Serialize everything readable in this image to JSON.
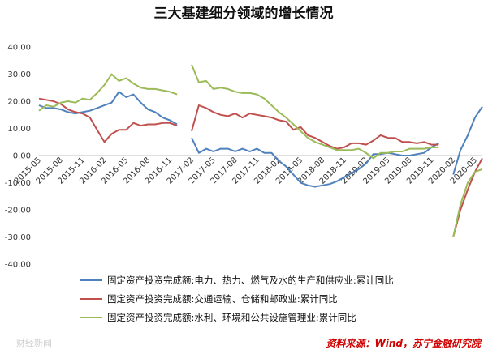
{
  "chart_data": {
    "type": "line",
    "title": "三大基建细分领域的增长情况",
    "ylim": [
      -40,
      40
    ],
    "yticks": [
      40,
      30,
      20,
      10,
      0,
      -10,
      -20,
      -30,
      -40
    ],
    "ytick_labels": [
      "40.00",
      "30.00",
      "20.00",
      "10.00",
      "0.00",
      "-10.00",
      "-20.00",
      "-30.00",
      "-40.00"
    ],
    "xtick_labels": [
      "2015-05",
      "2015-08",
      "2015-11",
      "2016-02",
      "2016-05",
      "2016-08",
      "2016-11",
      "2017-02",
      "2017-05",
      "2017-08",
      "2017-11",
      "2018-02",
      "2018-05",
      "2018-08",
      "2018-11",
      "2019-02",
      "2019-05",
      "2019-08",
      "2019-11",
      "2020-02",
      "2020-05"
    ],
    "x": [
      "2015-05",
      "2015-06",
      "2015-07",
      "2015-08",
      "2015-09",
      "2015-10",
      "2015-11",
      "2015-12",
      "2016-01",
      "2016-02",
      "2016-03",
      "2016-04",
      "2016-05",
      "2016-06",
      "2016-07",
      "2016-08",
      "2016-09",
      "2016-10",
      "2016-11",
      "2016-12",
      "2017-01",
      "2017-02",
      "2017-03",
      "2017-04",
      "2017-05",
      "2017-06",
      "2017-07",
      "2017-08",
      "2017-09",
      "2017-10",
      "2017-11",
      "2017-12",
      "2018-01",
      "2018-02",
      "2018-03",
      "2018-04",
      "2018-05",
      "2018-06",
      "2018-07",
      "2018-08",
      "2018-09",
      "2018-10",
      "2018-11",
      "2018-12",
      "2019-01",
      "2019-02",
      "2019-03",
      "2019-04",
      "2019-05",
      "2019-06",
      "2019-07",
      "2019-08",
      "2019-09",
      "2019-10",
      "2019-11",
      "2019-12",
      "2020-01",
      "2020-02",
      "2020-03",
      "2020-04",
      "2020-05",
      "2020-06"
    ],
    "series": [
      {
        "name": "固定资产投资完成额:电力、热力、燃气及水的生产和供应业:累计同比",
        "color": "#4f81bd",
        "values": [
          18.5,
          17.5,
          17.5,
          17.0,
          16.0,
          15.5,
          16.0,
          16.5,
          17.5,
          18.5,
          19.5,
          23.5,
          21.5,
          22.5,
          19.5,
          17.0,
          16.0,
          14.0,
          13.0,
          11.5,
          null,
          6.5,
          1.0,
          2.5,
          1.5,
          2.5,
          2.5,
          1.5,
          2.5,
          1.5,
          2.5,
          1.0,
          1.0,
          -2.0,
          -4.0,
          -7.0,
          -10.0,
          -11.0,
          -11.5,
          -11.0,
          -10.5,
          -9.5,
          -8.0,
          -6.5,
          -5.0,
          -3.0,
          0.5,
          0.5,
          1.0,
          0.5,
          0.0,
          0.0,
          0.5,
          1.0,
          3.0,
          4.5,
          null,
          -7.0,
          2.0,
          7.5,
          14.0,
          18.0
        ]
      },
      {
        "name": "固定资产投资完成额:交通运输、仓储和邮政业:累计同比",
        "color": "#c0504d",
        "values": [
          21.0,
          20.5,
          20.0,
          19.0,
          17.0,
          16.0,
          15.5,
          14.0,
          9.5,
          5.0,
          8.0,
          9.5,
          9.5,
          12.0,
          11.0,
          11.5,
          11.5,
          12.0,
          12.0,
          11.0,
          null,
          9.0,
          18.5,
          17.5,
          16.0,
          15.0,
          14.5,
          15.5,
          14.0,
          15.5,
          15.0,
          14.5,
          14.0,
          13.0,
          12.5,
          9.5,
          10.5,
          7.5,
          6.5,
          5.0,
          3.5,
          2.5,
          3.0,
          4.5,
          4.5,
          4.0,
          5.5,
          7.5,
          6.5,
          6.5,
          5.0,
          5.0,
          4.5,
          5.0,
          4.0,
          4.0,
          null,
          -30.0,
          -20.0,
          -12.5,
          -6.0,
          -1.0
        ]
      },
      {
        "name": "固定资产投资完成额:水利、环境和公共设施管理业:累计同比",
        "color": "#9bbb59",
        "values": [
          16.5,
          18.5,
          18.0,
          19.5,
          20.0,
          19.5,
          21.0,
          20.5,
          23.0,
          26.0,
          30.0,
          27.5,
          28.5,
          26.5,
          25.0,
          24.5,
          24.5,
          24.0,
          23.5,
          22.5,
          null,
          33.5,
          27.0,
          27.5,
          24.5,
          25.0,
          24.5,
          23.5,
          23.0,
          23.0,
          22.5,
          21.0,
          18.5,
          16.0,
          14.0,
          11.5,
          9.0,
          6.5,
          5.0,
          4.0,
          3.0,
          2.0,
          2.0,
          2.0,
          2.5,
          1.0,
          -1.0,
          1.0,
          1.0,
          1.5,
          1.5,
          2.5,
          2.5,
          2.5,
          3.0,
          3.0,
          null,
          -30.0,
          -18.0,
          -10.0,
          -6.0,
          -5.0
        ]
      }
    ],
    "legend_position": "bottom",
    "grid": false,
    "source": "资料来源：Wind，苏宁金融研究院",
    "watermark": "财经新闻"
  }
}
